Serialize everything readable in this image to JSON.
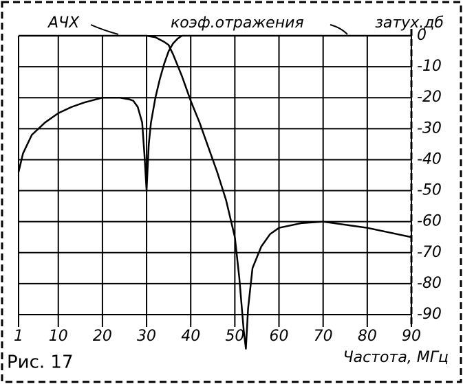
{
  "chart_data": {
    "type": "line",
    "labels": {
      "afc": "АЧХ",
      "refl": "коэф.отражения",
      "yaxis": "затух.дб"
    },
    "figure": "Рис. 17",
    "x_label": "Частота, МГц",
    "xlim": [
      1,
      90
    ],
    "xticks": [
      1,
      10,
      20,
      30,
      40,
      50,
      60,
      70,
      80,
      90
    ],
    "ylim": [
      -90,
      0
    ],
    "yticks": [
      0,
      -10,
      -20,
      -30,
      -40,
      -50,
      -60,
      -70,
      -80,
      -90
    ],
    "grid": true,
    "series": [
      {
        "color": "#000000",
        "x": [
          1,
          5,
          10,
          15,
          20,
          25,
          30,
          32,
          34,
          35,
          36,
          38,
          40,
          42,
          44,
          46,
          48,
          50,
          51,
          52,
          52.5,
          53,
          54,
          56,
          58,
          60,
          65,
          70,
          75,
          80,
          85,
          90
        ],
        "values": [
          0,
          0,
          0,
          0,
          0,
          0,
          0,
          -0.5,
          -2,
          -3,
          -6,
          -13,
          -21,
          -28,
          -36,
          -44,
          -53,
          -65,
          -78,
          -95,
          -101,
          -88,
          -75,
          -68,
          -64,
          -62,
          -60.5,
          -60,
          -61,
          -62,
          -63.5,
          -65
        ]
      },
      {
        "color": "#000000",
        "x": [
          1,
          2,
          4,
          7,
          10,
          13,
          16,
          20,
          24,
          26,
          27,
          28,
          29,
          29.5,
          30,
          30.5,
          31,
          32,
          33,
          34,
          35,
          36,
          37,
          38,
          40,
          50,
          60,
          70,
          80,
          90
        ],
        "values": [
          -44,
          -38,
          -32,
          -28,
          -25,
          -23,
          -21.5,
          -20,
          -20,
          -20.5,
          -21,
          -23,
          -28,
          -38,
          -50,
          -35,
          -28,
          -20,
          -14,
          -9,
          -5,
          -2.5,
          -1,
          0,
          0,
          0,
          0,
          0,
          0,
          0
        ]
      }
    ]
  }
}
